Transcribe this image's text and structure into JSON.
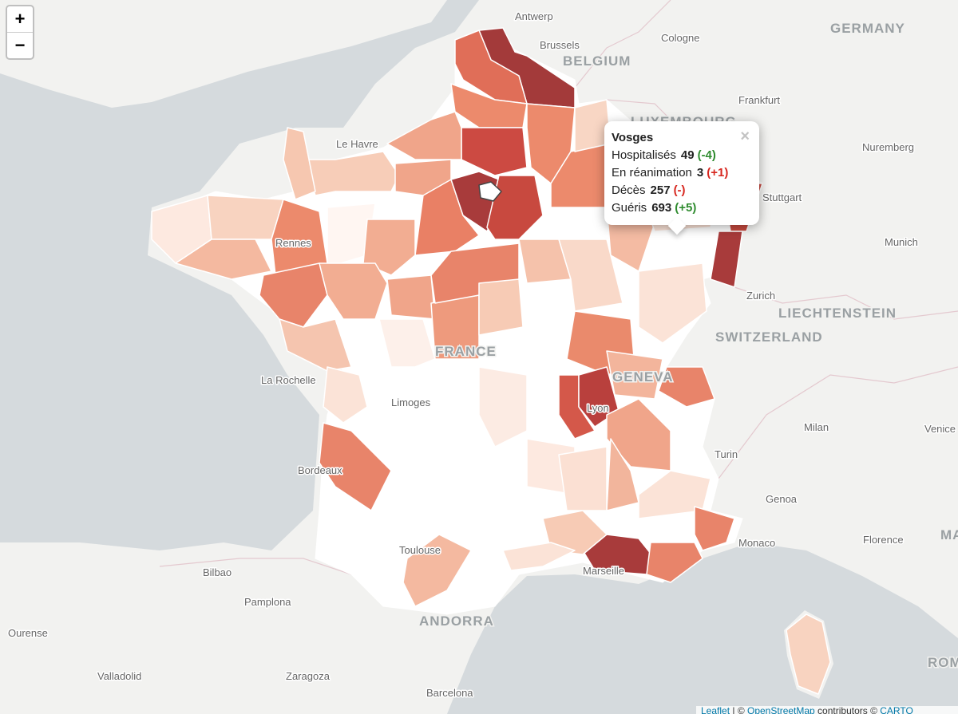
{
  "zoom_control": {
    "zoom_in": "+",
    "zoom_out": "−"
  },
  "popup": {
    "title": "Vosges",
    "close": "×",
    "rows": [
      {
        "label": "Hospitalisés",
        "value": 49,
        "change": "(-4)"
      },
      {
        "label": "En réanimation",
        "value": 3,
        "change": "(+1)"
      },
      {
        "label": "Décès",
        "value": 257,
        "change": "(-)"
      },
      {
        "label": "Guéris",
        "value": 693,
        "change": "(+5)"
      }
    ]
  },
  "map_labels": [
    "Antwerp",
    "Brussels",
    "BELGIUM",
    "Cologne",
    "GERMANY",
    "LUXEMBOURG",
    "Frankfurt",
    "Nuremberg",
    "Stuttgart",
    "Munich",
    "Le Havre",
    "Rennes",
    "FRANCE",
    "La Rochelle",
    "Limoges",
    "Bordeaux",
    "Toulouse",
    "ANDORRA",
    "Bilbao",
    "Pamplona",
    "Ourense",
    "Valladolid",
    "Zaragoza",
    "Barcelona",
    "Marseille",
    "Monaco",
    "Genoa",
    "Florence",
    "Turin",
    "Milan",
    "Venice",
    "Zurich",
    "LIECHTENSTEIN",
    "SWITZERLAND",
    "GENEVA",
    "Lyon",
    "ROM",
    "MA"
  ],
  "attribution": [
    "Leaflet",
    " | © ",
    "OpenStreetMap",
    " contributors © ",
    "CARTO"
  ]
}
